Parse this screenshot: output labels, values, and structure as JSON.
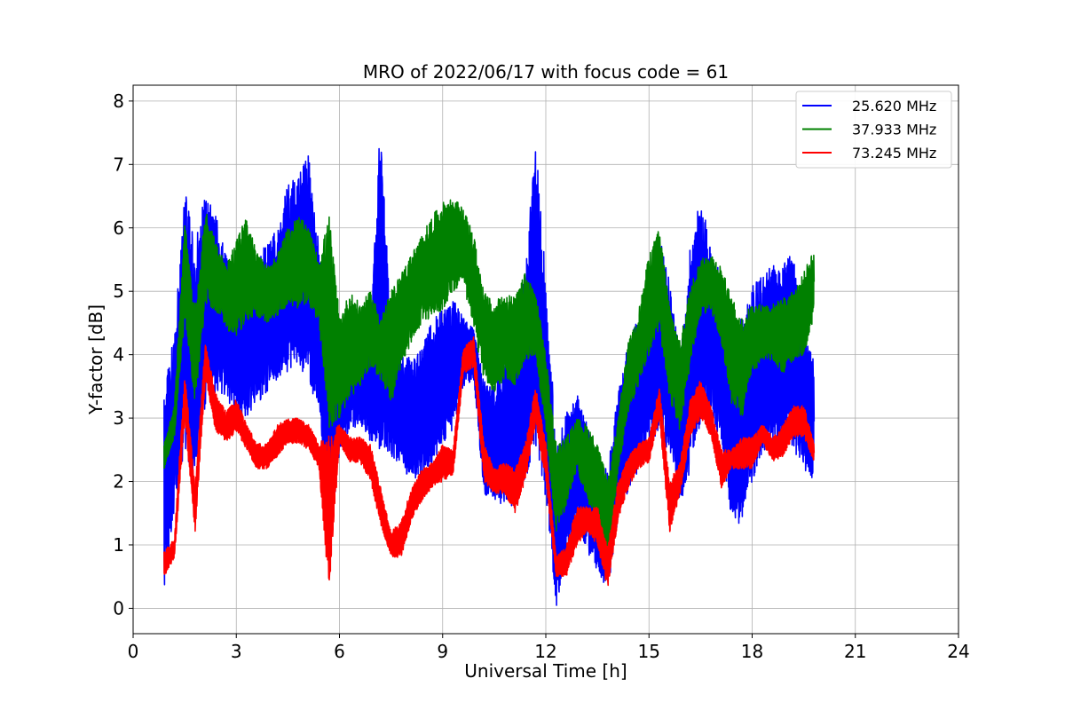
{
  "chart_data": {
    "type": "line",
    "title": "MRO of 2022/06/17 with focus code = 61",
    "xlabel": "Universal Time [h]",
    "ylabel": "Y-factor [dB]",
    "xlim": [
      0,
      24
    ],
    "ylim": [
      -0.4,
      8.25
    ],
    "xticks": [
      0,
      3,
      6,
      9,
      12,
      15,
      18,
      21,
      24
    ],
    "yticks": [
      0,
      1,
      2,
      3,
      4,
      5,
      6,
      7,
      8
    ],
    "grid": true,
    "legend_position": "top-right",
    "series": [
      {
        "name": "25.620 MHz",
        "color": "#0000ff",
        "x": [
          0.9,
          1.2,
          1.5,
          1.8,
          2.1,
          2.4,
          2.7,
          3.0,
          3.3,
          3.6,
          3.9,
          4.2,
          4.5,
          4.8,
          5.1,
          5.4,
          5.7,
          6.0,
          6.3,
          6.6,
          6.9,
          7.2,
          7.5,
          7.8,
          8.1,
          8.4,
          8.7,
          9.0,
          9.3,
          9.6,
          9.9,
          10.2,
          10.5,
          10.8,
          11.1,
          11.4,
          11.7,
          12.0,
          12.3,
          12.6,
          12.9,
          13.2,
          13.5,
          13.8,
          14.1,
          14.4,
          14.7,
          15.0,
          15.3,
          15.6,
          15.9,
          16.2,
          16.5,
          16.8,
          17.1,
          17.4,
          17.7,
          18.0,
          18.3,
          18.6,
          18.9,
          19.2,
          19.5,
          19.8
        ],
        "low": [
          0.3,
          1.5,
          2.5,
          2.0,
          3.2,
          3.4,
          3.3,
          3.1,
          3.0,
          3.2,
          3.4,
          3.6,
          3.7,
          3.9,
          3.5,
          3.2,
          0.8,
          2.5,
          2.8,
          2.9,
          2.6,
          2.5,
          2.4,
          2.2,
          2.0,
          2.1,
          2.2,
          2.6,
          2.8,
          3.5,
          3.6,
          1.8,
          1.7,
          1.6,
          1.5,
          2.0,
          2.6,
          1.6,
          0.0,
          0.8,
          1.3,
          0.9,
          0.6,
          0.2,
          1.4,
          1.8,
          2.2,
          2.6,
          2.8,
          2.4,
          1.6,
          2.2,
          2.9,
          3.0,
          2.6,
          1.4,
          1.3,
          2.0,
          2.4,
          2.6,
          2.6,
          2.5,
          2.2,
          2.0
        ],
        "high": [
          3.8,
          4.3,
          6.6,
          5.8,
          6.6,
          6.2,
          5.6,
          5.4,
          5.6,
          5.5,
          5.8,
          6.0,
          6.7,
          6.8,
          7.2,
          5.7,
          3.8,
          4.2,
          4.6,
          4.7,
          4.4,
          7.85,
          4.3,
          4.1,
          3.9,
          4.1,
          4.6,
          4.7,
          4.9,
          4.6,
          4.4,
          3.6,
          3.5,
          3.9,
          4.8,
          5.3,
          7.4,
          5.2,
          2.6,
          3.1,
          3.4,
          2.9,
          2.4,
          2.2,
          3.4,
          4.2,
          4.6,
          5.2,
          6.0,
          5.2,
          3.9,
          5.8,
          6.5,
          5.8,
          5.2,
          4.2,
          4.6,
          5.1,
          5.3,
          5.4,
          5.5,
          5.6,
          4.4,
          3.9
        ]
      },
      {
        "name": "37.933 MHz",
        "color": "#008000",
        "x": [
          0.9,
          1.2,
          1.5,
          1.8,
          2.1,
          2.4,
          2.7,
          3.0,
          3.3,
          3.6,
          3.9,
          4.2,
          4.5,
          4.8,
          5.1,
          5.4,
          5.7,
          6.0,
          6.3,
          6.6,
          6.9,
          7.2,
          7.5,
          7.8,
          8.1,
          8.4,
          8.7,
          9.0,
          9.3,
          9.6,
          9.9,
          10.2,
          10.5,
          10.8,
          11.1,
          11.4,
          11.7,
          12.0,
          12.3,
          12.6,
          12.9,
          13.2,
          13.5,
          13.8,
          14.1,
          14.4,
          14.7,
          15.0,
          15.3,
          15.6,
          15.9,
          16.2,
          16.5,
          16.8,
          17.1,
          17.4,
          17.7,
          18.0,
          18.3,
          18.6,
          18.9,
          19.2,
          19.5,
          19.8
        ],
        "low": [
          2.2,
          2.7,
          4.6,
          3.2,
          4.8,
          4.7,
          4.4,
          4.3,
          4.5,
          4.6,
          4.5,
          4.6,
          4.8,
          4.7,
          4.8,
          4.5,
          2.8,
          3.0,
          3.3,
          3.5,
          3.8,
          3.6,
          3.2,
          3.8,
          4.2,
          4.5,
          4.6,
          4.7,
          5.0,
          5.1,
          4.4,
          3.6,
          3.4,
          3.6,
          3.5,
          3.9,
          4.0,
          2.8,
          1.2,
          1.6,
          2.2,
          1.7,
          1.3,
          0.8,
          2.1,
          3.1,
          3.5,
          4.0,
          4.4,
          3.3,
          2.8,
          3.8,
          4.6,
          4.7,
          4.2,
          3.2,
          3.0,
          3.7,
          3.9,
          3.9,
          3.7,
          3.9,
          4.0,
          4.6
        ],
        "high": [
          2.6,
          3.2,
          6.1,
          4.7,
          6.3,
          5.8,
          5.4,
          5.8,
          6.2,
          5.6,
          5.4,
          5.6,
          6.0,
          6.2,
          6.0,
          5.5,
          6.2,
          4.6,
          5.0,
          4.8,
          5.0,
          4.6,
          5.0,
          5.3,
          5.6,
          5.9,
          6.2,
          6.4,
          6.5,
          6.3,
          5.9,
          5.0,
          4.8,
          5.0,
          4.9,
          5.3,
          5.0,
          4.0,
          2.6,
          2.7,
          3.0,
          2.9,
          2.6,
          2.0,
          3.0,
          4.2,
          4.7,
          5.6,
          6.0,
          4.8,
          4.2,
          5.1,
          5.5,
          5.6,
          5.4,
          4.9,
          4.6,
          4.8,
          4.8,
          4.8,
          4.9,
          5.0,
          5.3,
          5.7
        ]
      },
      {
        "name": "73.245 MHz",
        "color": "#ff0000",
        "x": [
          0.9,
          1.2,
          1.5,
          1.8,
          2.1,
          2.4,
          2.7,
          3.0,
          3.3,
          3.6,
          3.9,
          4.2,
          4.5,
          4.8,
          5.1,
          5.4,
          5.7,
          6.0,
          6.3,
          6.6,
          6.9,
          7.2,
          7.5,
          7.8,
          8.1,
          8.4,
          8.7,
          9.0,
          9.3,
          9.6,
          9.9,
          10.2,
          10.5,
          10.8,
          11.1,
          11.4,
          11.7,
          12.0,
          12.3,
          12.6,
          12.9,
          13.2,
          13.5,
          13.8,
          14.1,
          14.4,
          14.7,
          15.0,
          15.3,
          15.6,
          15.9,
          16.2,
          16.5,
          16.8,
          17.1,
          17.4,
          17.7,
          18.0,
          18.3,
          18.6,
          18.9,
          19.2,
          19.5,
          19.8
        ],
        "low": [
          0.5,
          0.8,
          3.0,
          1.2,
          3.6,
          2.8,
          2.6,
          2.8,
          2.5,
          2.2,
          2.2,
          2.4,
          2.6,
          2.6,
          2.5,
          2.2,
          0.2,
          2.6,
          2.3,
          2.3,
          2.0,
          1.3,
          0.8,
          0.8,
          1.4,
          1.7,
          1.9,
          2.0,
          2.1,
          3.7,
          3.8,
          2.0,
          1.8,
          1.8,
          1.5,
          2.0,
          2.9,
          2.0,
          0.5,
          0.5,
          1.0,
          1.2,
          1.0,
          0.3,
          1.4,
          1.9,
          2.2,
          2.3,
          3.0,
          1.2,
          1.8,
          2.7,
          3.0,
          2.7,
          1.9,
          2.2,
          2.2,
          2.2,
          2.6,
          2.3,
          2.4,
          2.7,
          2.7,
          2.3
        ],
        "high": [
          0.9,
          1.1,
          3.7,
          1.9,
          4.2,
          3.4,
          3.1,
          3.3,
          2.9,
          2.6,
          2.6,
          2.9,
          3.0,
          3.0,
          2.9,
          2.6,
          2.8,
          2.9,
          2.7,
          2.7,
          2.6,
          1.9,
          1.2,
          1.4,
          1.9,
          2.2,
          2.3,
          2.6,
          2.5,
          4.1,
          4.3,
          2.6,
          2.2,
          2.3,
          2.2,
          2.6,
          3.5,
          2.6,
          0.8,
          1.0,
          1.6,
          1.6,
          1.6,
          1.0,
          2.0,
          2.4,
          2.6,
          2.7,
          3.5,
          2.0,
          2.3,
          3.3,
          3.6,
          3.2,
          2.5,
          2.5,
          2.7,
          2.7,
          2.9,
          2.7,
          2.9,
          3.2,
          3.2,
          2.6
        ]
      }
    ]
  }
}
